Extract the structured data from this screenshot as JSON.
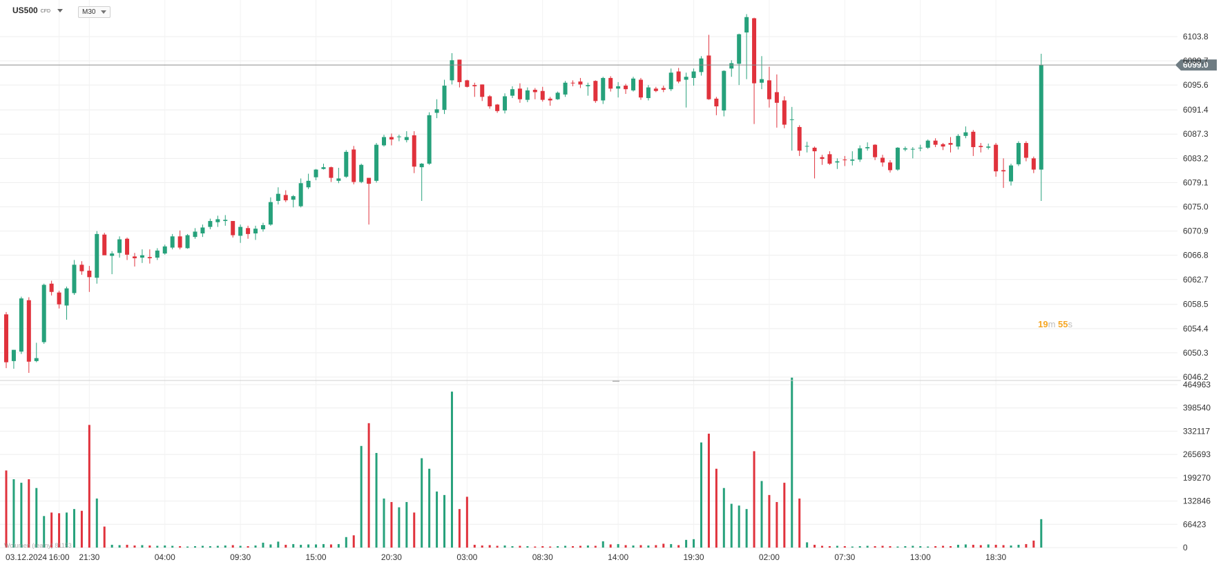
{
  "header": {
    "symbol": "US500",
    "symbol_tag": "CFD",
    "timeframe": "M30"
  },
  "timer": {
    "minutes": "19",
    "minutes_unit": "m",
    "seconds": "55",
    "seconds_unit": "s"
  },
  "volume_legend": "Wolumen (realny) 81153",
  "colors": {
    "up": "#26a17b",
    "down": "#e0323c",
    "grid": "#eeeeee",
    "price_line": "#8a8a8a",
    "price_tag": "#6e7b82"
  },
  "chart_data": {
    "type": "candlestick",
    "price_axis_ticks": [
      "6103.8",
      "6099.7",
      "6095.6",
      "6091.4",
      "6087.3",
      "6083.2",
      "6079.1",
      "6075.0",
      "6070.9",
      "6066.8",
      "6062.7",
      "6058.5",
      "6054.4",
      "6050.3",
      "6046.2"
    ],
    "ylim": [
      6046.2,
      6103.8
    ],
    "current_price": "6099.0",
    "volume_axis_ticks": [
      "464963",
      "398540",
      "332117",
      "265693",
      "199270",
      "132846",
      "66423",
      "0"
    ],
    "volume_ylim": [
      0,
      464963
    ],
    "x_tick_labels": [
      "03.12.2024",
      "16:00",
      "21:30",
      "04:00",
      "09:30",
      "15:00",
      "20:30",
      "03:00",
      "08:30",
      "14:00",
      "19:30",
      "02:00",
      "07:30",
      "13:00",
      "18:30"
    ],
    "candles": [
      {
        "o": 6056.8,
        "h": 6057.2,
        "l": 6047.7,
        "c": 6048.7,
        "v": 220000
      },
      {
        "o": 6048.9,
        "h": 6050.8,
        "l": 6047.6,
        "c": 6050.8,
        "v": 195000
      },
      {
        "o": 6050.5,
        "h": 6059.8,
        "l": 6050.1,
        "c": 6059.5,
        "v": 185000
      },
      {
        "o": 6059.2,
        "h": 6059.7,
        "l": 6046.9,
        "c": 6048.8,
        "v": 195000
      },
      {
        "o": 6048.9,
        "h": 6052.0,
        "l": 6048.7,
        "c": 6049.4,
        "v": 170000
      },
      {
        "o": 6052.1,
        "h": 6062.0,
        "l": 6051.8,
        "c": 6061.8,
        "v": 90000
      },
      {
        "o": 6062.0,
        "h": 6062.5,
        "l": 6060.0,
        "c": 6060.6,
        "v": 100000
      },
      {
        "o": 6060.5,
        "h": 6060.8,
        "l": 6057.8,
        "c": 6058.5,
        "v": 98000
      },
      {
        "o": 6058.3,
        "h": 6061.5,
        "l": 6055.9,
        "c": 6061.2,
        "v": 100000
      },
      {
        "o": 6060.4,
        "h": 6066.0,
        "l": 6060.1,
        "c": 6065.2,
        "v": 110000
      },
      {
        "o": 6065.2,
        "h": 6065.8,
        "l": 6063.5,
        "c": 6064.1,
        "v": 105000
      },
      {
        "o": 6064.2,
        "h": 6065.0,
        "l": 6060.6,
        "c": 6063.1,
        "v": 350000
      },
      {
        "o": 6063.0,
        "h": 6070.9,
        "l": 6062.0,
        "c": 6070.4,
        "v": 140000
      },
      {
        "o": 6070.3,
        "h": 6070.6,
        "l": 6066.9,
        "c": 6066.8,
        "v": 60000
      },
      {
        "o": 6066.7,
        "h": 6067.5,
        "l": 6063.6,
        "c": 6067.1,
        "v": 8000
      },
      {
        "o": 6067.2,
        "h": 6070.0,
        "l": 6066.4,
        "c": 6069.5,
        "v": 7000
      },
      {
        "o": 6069.6,
        "h": 6069.8,
        "l": 6066.0,
        "c": 6066.9,
        "v": 8000
      },
      {
        "o": 6066.6,
        "h": 6067.2,
        "l": 6064.9,
        "c": 6066.3,
        "v": 6000
      },
      {
        "o": 6066.4,
        "h": 6067.8,
        "l": 6065.5,
        "c": 6066.8,
        "v": 7000
      },
      {
        "o": 6066.5,
        "h": 6067.8,
        "l": 6065.4,
        "c": 6066.3,
        "v": 6000
      },
      {
        "o": 6066.4,
        "h": 6068.0,
        "l": 6066.0,
        "c": 6067.6,
        "v": 5000
      },
      {
        "o": 6067.1,
        "h": 6068.6,
        "l": 6066.9,
        "c": 6068.3,
        "v": 6000
      },
      {
        "o": 6068.1,
        "h": 6070.4,
        "l": 6067.8,
        "c": 6070.0,
        "v": 5000
      },
      {
        "o": 6070.0,
        "h": 6071.0,
        "l": 6067.8,
        "c": 6068.1,
        "v": 4000
      },
      {
        "o": 6068.0,
        "h": 6070.4,
        "l": 6067.9,
        "c": 6070.2,
        "v": 3000
      },
      {
        "o": 6069.9,
        "h": 6071.4,
        "l": 6069.6,
        "c": 6070.8,
        "v": 4000
      },
      {
        "o": 6070.5,
        "h": 6072.0,
        "l": 6069.9,
        "c": 6071.5,
        "v": 5000
      },
      {
        "o": 6071.6,
        "h": 6073.0,
        "l": 6071.2,
        "c": 6072.6,
        "v": 4000
      },
      {
        "o": 6072.4,
        "h": 6073.5,
        "l": 6071.6,
        "c": 6072.9,
        "v": 5000
      },
      {
        "o": 6072.6,
        "h": 6073.6,
        "l": 6071.8,
        "c": 6072.8,
        "v": 6000
      },
      {
        "o": 6072.6,
        "h": 6072.6,
        "l": 6069.8,
        "c": 6070.2,
        "v": 7000
      },
      {
        "o": 6070.1,
        "h": 6072.0,
        "l": 6068.9,
        "c": 6071.6,
        "v": 5000
      },
      {
        "o": 6071.4,
        "h": 6071.8,
        "l": 6069.6,
        "c": 6070.4,
        "v": 4000
      },
      {
        "o": 6070.5,
        "h": 6071.8,
        "l": 6069.4,
        "c": 6071.3,
        "v": 6000
      },
      {
        "o": 6071.2,
        "h": 6072.3,
        "l": 6070.8,
        "c": 6071.9,
        "v": 14000
      },
      {
        "o": 6072.0,
        "h": 6076.6,
        "l": 6071.8,
        "c": 6075.8,
        "v": 9000
      },
      {
        "o": 6076.0,
        "h": 6078.3,
        "l": 6075.4,
        "c": 6077.2,
        "v": 17000
      },
      {
        "o": 6077.0,
        "h": 6077.8,
        "l": 6075.8,
        "c": 6076.1,
        "v": 8000
      },
      {
        "o": 6076.2,
        "h": 6077.0,
        "l": 6074.9,
        "c": 6076.8,
        "v": 10000
      },
      {
        "o": 6075.1,
        "h": 6079.8,
        "l": 6074.9,
        "c": 6079.0,
        "v": 8000
      },
      {
        "o": 6078.3,
        "h": 6080.6,
        "l": 6078.0,
        "c": 6079.4,
        "v": 9000
      },
      {
        "o": 6080.0,
        "h": 6081.4,
        "l": 6079.5,
        "c": 6081.3,
        "v": 9000
      },
      {
        "o": 6081.4,
        "h": 6082.3,
        "l": 6081.3,
        "c": 6081.7,
        "v": 10000
      },
      {
        "o": 6081.7,
        "h": 6081.8,
        "l": 6079.2,
        "c": 6079.9,
        "v": 9000
      },
      {
        "o": 6079.4,
        "h": 6081.6,
        "l": 6079.0,
        "c": 6079.8,
        "v": 10000
      },
      {
        "o": 6080.1,
        "h": 6084.6,
        "l": 6079.9,
        "c": 6084.3,
        "v": 30000
      },
      {
        "o": 6084.7,
        "h": 6085.3,
        "l": 6078.8,
        "c": 6079.2,
        "v": 35000
      },
      {
        "o": 6079.2,
        "h": 6082.3,
        "l": 6079.0,
        "c": 6082.1,
        "v": 290000
      },
      {
        "o": 6079.9,
        "h": 6079.9,
        "l": 6072.0,
        "c": 6078.9,
        "v": 355000
      },
      {
        "o": 6079.4,
        "h": 6085.8,
        "l": 6079.1,
        "c": 6085.5,
        "v": 270000
      },
      {
        "o": 6085.4,
        "h": 6087.2,
        "l": 6085.2,
        "c": 6086.8,
        "v": 140000
      },
      {
        "o": 6086.8,
        "h": 6087.4,
        "l": 6085.4,
        "c": 6086.4,
        "v": 130000
      },
      {
        "o": 6086.9,
        "h": 6087.2,
        "l": 6086.1,
        "c": 6086.9,
        "v": 115000
      },
      {
        "o": 6086.3,
        "h": 6087.8,
        "l": 6085.9,
        "c": 6086.8,
        "v": 130000
      },
      {
        "o": 6087.1,
        "h": 6087.8,
        "l": 6080.7,
        "c": 6081.8,
        "v": 100000
      },
      {
        "o": 6081.7,
        "h": 6082.4,
        "l": 6076.0,
        "c": 6082.3,
        "v": 255000
      },
      {
        "o": 6082.3,
        "h": 6091.0,
        "l": 6082.1,
        "c": 6090.5,
        "v": 225000
      },
      {
        "o": 6090.9,
        "h": 6093.2,
        "l": 6090.0,
        "c": 6091.5,
        "v": 160000
      },
      {
        "o": 6091.4,
        "h": 6096.5,
        "l": 6090.7,
        "c": 6095.5,
        "v": 150000
      },
      {
        "o": 6096.4,
        "h": 6101.0,
        "l": 6095.7,
        "c": 6099.8,
        "v": 445000
      },
      {
        "o": 6099.9,
        "h": 6099.9,
        "l": 6095.2,
        "c": 6096.1,
        "v": 110000
      },
      {
        "o": 6096.4,
        "h": 6096.5,
        "l": 6095.2,
        "c": 6095.3,
        "v": 145000
      },
      {
        "o": 6095.6,
        "h": 6096.0,
        "l": 6093.6,
        "c": 6095.4,
        "v": 8000
      },
      {
        "o": 6095.7,
        "h": 6095.7,
        "l": 6092.9,
        "c": 6093.6,
        "v": 6000
      },
      {
        "o": 6093.7,
        "h": 6093.9,
        "l": 6091.6,
        "c": 6092.0,
        "v": 7000
      },
      {
        "o": 6092.3,
        "h": 6092.4,
        "l": 6090.9,
        "c": 6091.2,
        "v": 5000
      },
      {
        "o": 6091.3,
        "h": 6094.2,
        "l": 6090.8,
        "c": 6093.7,
        "v": 6000
      },
      {
        "o": 6093.8,
        "h": 6095.4,
        "l": 6093.4,
        "c": 6094.9,
        "v": 4000
      },
      {
        "o": 6095.0,
        "h": 6095.9,
        "l": 6092.6,
        "c": 6093.2,
        "v": 5000
      },
      {
        "o": 6093.1,
        "h": 6095.2,
        "l": 6092.7,
        "c": 6094.7,
        "v": 4000
      },
      {
        "o": 6094.8,
        "h": 6095.1,
        "l": 6093.2,
        "c": 6094.4,
        "v": 3000
      },
      {
        "o": 6094.6,
        "h": 6095.3,
        "l": 6092.8,
        "c": 6093.1,
        "v": 4000
      },
      {
        "o": 6093.3,
        "h": 6093.6,
        "l": 6092.1,
        "c": 6093.0,
        "v": 3000
      },
      {
        "o": 6093.2,
        "h": 6094.5,
        "l": 6093.1,
        "c": 6094.3,
        "v": 4000
      },
      {
        "o": 6094.0,
        "h": 6096.3,
        "l": 6093.6,
        "c": 6096.0,
        "v": 5000
      },
      {
        "o": 6096.0,
        "h": 6096.4,
        "l": 6095.4,
        "c": 6095.9,
        "v": 4000
      },
      {
        "o": 6096.2,
        "h": 6096.8,
        "l": 6095.1,
        "c": 6095.7,
        "v": 5000
      },
      {
        "o": 6095.4,
        "h": 6096.0,
        "l": 6093.8,
        "c": 6095.6,
        "v": 6000
      },
      {
        "o": 6096.3,
        "h": 6096.4,
        "l": 6092.6,
        "c": 6092.9,
        "v": 5000
      },
      {
        "o": 6093.0,
        "h": 6097.0,
        "l": 6092.4,
        "c": 6096.8,
        "v": 18000
      },
      {
        "o": 6096.8,
        "h": 6097.1,
        "l": 6094.5,
        "c": 6095.0,
        "v": 9000
      },
      {
        "o": 6095.0,
        "h": 6096.1,
        "l": 6093.5,
        "c": 6095.4,
        "v": 10000
      },
      {
        "o": 6095.5,
        "h": 6095.8,
        "l": 6094.1,
        "c": 6094.9,
        "v": 7000
      },
      {
        "o": 6094.7,
        "h": 6097.0,
        "l": 6094.5,
        "c": 6096.7,
        "v": 6000
      },
      {
        "o": 6096.5,
        "h": 6096.8,
        "l": 6093.1,
        "c": 6093.5,
        "v": 7000
      },
      {
        "o": 6093.4,
        "h": 6095.6,
        "l": 6093.0,
        "c": 6095.2,
        "v": 6000
      },
      {
        "o": 6095.0,
        "h": 6095.3,
        "l": 6094.4,
        "c": 6094.6,
        "v": 7000
      },
      {
        "o": 6095.1,
        "h": 6095.5,
        "l": 6094.4,
        "c": 6094.8,
        "v": 11000
      },
      {
        "o": 6094.9,
        "h": 6098.4,
        "l": 6094.6,
        "c": 6097.7,
        "v": 10000
      },
      {
        "o": 6097.9,
        "h": 6098.5,
        "l": 6095.9,
        "c": 6096.2,
        "v": 7000
      },
      {
        "o": 6096.5,
        "h": 6097.7,
        "l": 6091.8,
        "c": 6097.0,
        "v": 22000
      },
      {
        "o": 6096.8,
        "h": 6098.4,
        "l": 6095.5,
        "c": 6097.9,
        "v": 24000
      },
      {
        "o": 6097.8,
        "h": 6100.5,
        "l": 6097.2,
        "c": 6100.1,
        "v": 300000
      },
      {
        "o": 6100.6,
        "h": 6104.1,
        "l": 6093.1,
        "c": 6093.2,
        "v": 325000
      },
      {
        "o": 6093.3,
        "h": 6093.6,
        "l": 6090.5,
        "c": 6092.0,
        "v": 225000
      },
      {
        "o": 6091.3,
        "h": 6098.1,
        "l": 6090.3,
        "c": 6098.0,
        "v": 170000
      },
      {
        "o": 6098.4,
        "h": 6099.8,
        "l": 6097.0,
        "c": 6099.3,
        "v": 125000
      },
      {
        "o": 6099.2,
        "h": 6104.3,
        "l": 6095.6,
        "c": 6104.2,
        "v": 120000
      },
      {
        "o": 6104.5,
        "h": 6107.6,
        "l": 6096.6,
        "c": 6107.1,
        "v": 110000
      },
      {
        "o": 6106.9,
        "h": 6107.0,
        "l": 6089.0,
        "c": 6095.9,
        "v": 275000
      },
      {
        "o": 6096.0,
        "h": 6100.5,
        "l": 6094.9,
        "c": 6096.6,
        "v": 190000
      },
      {
        "o": 6096.4,
        "h": 6098.7,
        "l": 6091.8,
        "c": 6093.2,
        "v": 150000
      },
      {
        "o": 6094.4,
        "h": 6097.4,
        "l": 6088.4,
        "c": 6092.6,
        "v": 130000
      },
      {
        "o": 6093.0,
        "h": 6093.7,
        "l": 6088.3,
        "c": 6088.9,
        "v": 185000
      },
      {
        "o": 6089.8,
        "h": 6091.9,
        "l": 6084.5,
        "c": 6089.8,
        "v": 485000
      },
      {
        "o": 6088.5,
        "h": 6088.8,
        "l": 6083.6,
        "c": 6084.5,
        "v": 140000
      },
      {
        "o": 6085.3,
        "h": 6086.0,
        "l": 6084.2,
        "c": 6085.3,
        "v": 15000
      },
      {
        "o": 6085.0,
        "h": 6085.2,
        "l": 6079.8,
        "c": 6084.4,
        "v": 8000
      },
      {
        "o": 6083.4,
        "h": 6083.8,
        "l": 6082.1,
        "c": 6083.1,
        "v": 5000
      },
      {
        "o": 6083.9,
        "h": 6084.4,
        "l": 6082.1,
        "c": 6082.3,
        "v": 4000
      },
      {
        "o": 6082.5,
        "h": 6083.2,
        "l": 6081.4,
        "c": 6082.7,
        "v": 5000
      },
      {
        "o": 6083.0,
        "h": 6083.6,
        "l": 6081.9,
        "c": 6082.9,
        "v": 4000
      },
      {
        "o": 6082.8,
        "h": 6084.4,
        "l": 6082.0,
        "c": 6083.0,
        "v": 3000
      },
      {
        "o": 6083.0,
        "h": 6085.4,
        "l": 6082.6,
        "c": 6084.9,
        "v": 4000
      },
      {
        "o": 6084.9,
        "h": 6085.9,
        "l": 6084.5,
        "c": 6085.1,
        "v": 5000
      },
      {
        "o": 6085.5,
        "h": 6085.6,
        "l": 6082.9,
        "c": 6083.4,
        "v": 4000
      },
      {
        "o": 6083.3,
        "h": 6083.8,
        "l": 6081.8,
        "c": 6082.5,
        "v": 5000
      },
      {
        "o": 6082.5,
        "h": 6082.9,
        "l": 6080.8,
        "c": 6081.2,
        "v": 4000
      },
      {
        "o": 6081.3,
        "h": 6085.1,
        "l": 6081.1,
        "c": 6085.0,
        "v": 3000
      },
      {
        "o": 6084.7,
        "h": 6085.2,
        "l": 6084.4,
        "c": 6084.9,
        "v": 4000
      },
      {
        "o": 6084.8,
        "h": 6085.1,
        "l": 6083.2,
        "c": 6084.8,
        "v": 5000
      },
      {
        "o": 6084.9,
        "h": 6085.5,
        "l": 6084.4,
        "c": 6085.0,
        "v": 4000
      },
      {
        "o": 6085.0,
        "h": 6086.4,
        "l": 6084.8,
        "c": 6086.2,
        "v": 3000
      },
      {
        "o": 6086.2,
        "h": 6086.6,
        "l": 6085.1,
        "c": 6085.5,
        "v": 4000
      },
      {
        "o": 6085.6,
        "h": 6085.8,
        "l": 6084.6,
        "c": 6085.2,
        "v": 5000
      },
      {
        "o": 6085.8,
        "h": 6086.8,
        "l": 6084.2,
        "c": 6085.5,
        "v": 4000
      },
      {
        "o": 6085.2,
        "h": 6087.3,
        "l": 6084.7,
        "c": 6087.0,
        "v": 8000
      },
      {
        "o": 6087.0,
        "h": 6088.6,
        "l": 6086.6,
        "c": 6087.6,
        "v": 9000
      },
      {
        "o": 6087.7,
        "h": 6088.0,
        "l": 6083.6,
        "c": 6085.1,
        "v": 8000
      },
      {
        "o": 6085.3,
        "h": 6085.8,
        "l": 6084.2,
        "c": 6085.1,
        "v": 7000
      },
      {
        "o": 6085.0,
        "h": 6085.7,
        "l": 6084.7,
        "c": 6085.2,
        "v": 9000
      },
      {
        "o": 6085.5,
        "h": 6085.8,
        "l": 6080.1,
        "c": 6081.0,
        "v": 8000
      },
      {
        "o": 6081.2,
        "h": 6083.2,
        "l": 6078.2,
        "c": 6081.0,
        "v": 7000
      },
      {
        "o": 6079.3,
        "h": 6082.3,
        "l": 6078.6,
        "c": 6082.0,
        "v": 6000
      },
      {
        "o": 6082.2,
        "h": 6086.1,
        "l": 6081.9,
        "c": 6085.8,
        "v": 8000
      },
      {
        "o": 6085.8,
        "h": 6086.1,
        "l": 6082.7,
        "c": 6083.3,
        "v": 10000
      },
      {
        "o": 6083.2,
        "h": 6083.5,
        "l": 6080.7,
        "c": 6081.3,
        "v": 20000
      },
      {
        "o": 6081.3,
        "h": 6100.9,
        "l": 6076.0,
        "c": 6099.0,
        "v": 81153
      }
    ]
  }
}
